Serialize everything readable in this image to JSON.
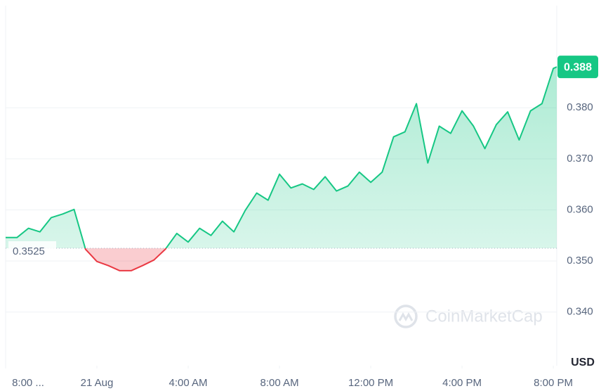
{
  "chart_data": {
    "type": "line",
    "x": [
      0,
      0.5,
      1,
      1.5,
      2,
      2.5,
      3,
      3.5,
      4,
      4.5,
      5,
      5.5,
      6,
      6.5,
      7,
      7.5,
      8,
      8.5,
      9,
      9.5,
      10,
      10.5,
      11,
      11.5,
      12,
      12.5,
      13,
      13.5,
      14,
      14.5,
      15,
      15.5,
      16,
      16.5,
      17,
      17.5,
      18,
      18.5,
      19,
      19.5,
      20,
      20.5,
      21,
      21.5,
      22,
      22.5,
      23,
      23.5,
      24,
      24.15
    ],
    "values": [
      0.3546,
      0.3546,
      0.3564,
      0.3557,
      0.3585,
      0.3592,
      0.3601,
      0.3523,
      0.3499,
      0.3491,
      0.3481,
      0.3481,
      0.3491,
      0.3502,
      0.3523,
      0.3554,
      0.3537,
      0.3564,
      0.355,
      0.3578,
      0.3557,
      0.3599,
      0.3633,
      0.3619,
      0.367,
      0.3643,
      0.3651,
      0.364,
      0.3665,
      0.3637,
      0.3647,
      0.3674,
      0.3654,
      0.3674,
      0.3743,
      0.3753,
      0.3808,
      0.3692,
      0.3764,
      0.375,
      0.3794,
      0.3764,
      0.372,
      0.3767,
      0.3792,
      0.3737,
      0.3794,
      0.3808,
      0.3877,
      0.388
    ],
    "baseline": 0.3525,
    "current_price": 0.388,
    "up_color": "#16c784",
    "down_color": "#ea3943",
    "xlim": [
      0,
      24.15
    ],
    "xticks": [
      {
        "value": 0,
        "label": "8:00 ..."
      },
      {
        "value": 4,
        "label": "21 Aug"
      },
      {
        "value": 8,
        "label": "4:00 AM"
      },
      {
        "value": 12,
        "label": "8:00 AM"
      },
      {
        "value": 16,
        "label": "12:00 PM"
      },
      {
        "value": 20,
        "label": "4:00 PM"
      },
      {
        "value": 24,
        "label": "8:00 PM"
      }
    ],
    "ylim": [
      0.3295,
      0.4
    ],
    "yticks": [
      {
        "value": 0.34,
        "label": "0.340"
      },
      {
        "value": 0.35,
        "label": "0.350"
      },
      {
        "value": 0.36,
        "label": "0.360"
      },
      {
        "value": 0.37,
        "label": "0.370"
      },
      {
        "value": 0.38,
        "label": "0.380"
      }
    ],
    "y_label": "USD",
    "watermark": "CoinMarketCap",
    "grid": true
  }
}
